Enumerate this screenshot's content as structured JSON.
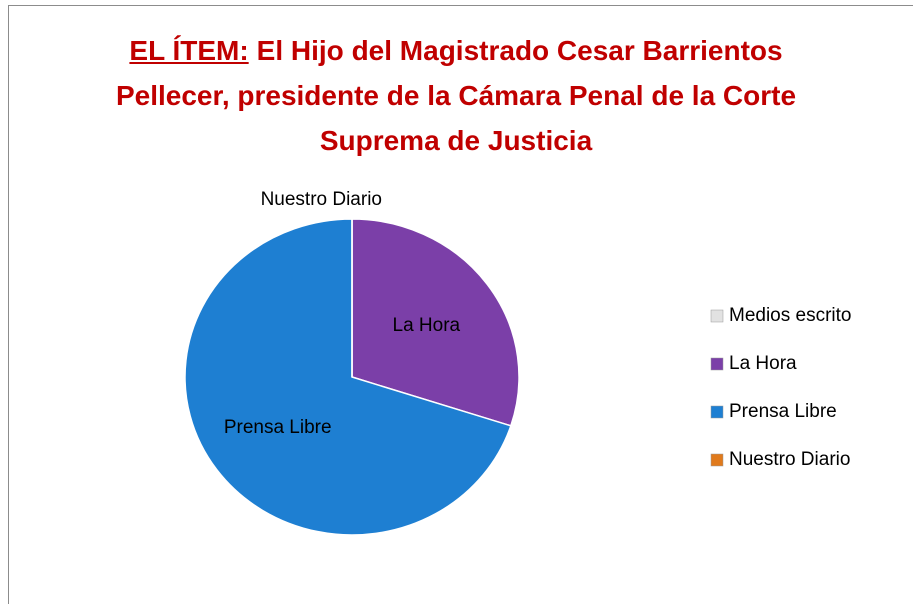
{
  "chart_data": {
    "type": "pie",
    "title_label": "EL ÍTEM:",
    "title": "El Hijo del Magistrado Cesar Barrientos Pellecer, presidente de la Cámara Penal de la Corte Suprema de Justicia",
    "categories": [
      "Medios escrito",
      "La Hora",
      "Prensa Libre",
      "Nuestro Diario"
    ],
    "values": [
      0,
      30,
      70,
      0
    ],
    "colors": [
      "#e2e2e2",
      "#7b3fa8",
      "#1e7fd2",
      "#e07a1c"
    ],
    "legend": "right"
  }
}
